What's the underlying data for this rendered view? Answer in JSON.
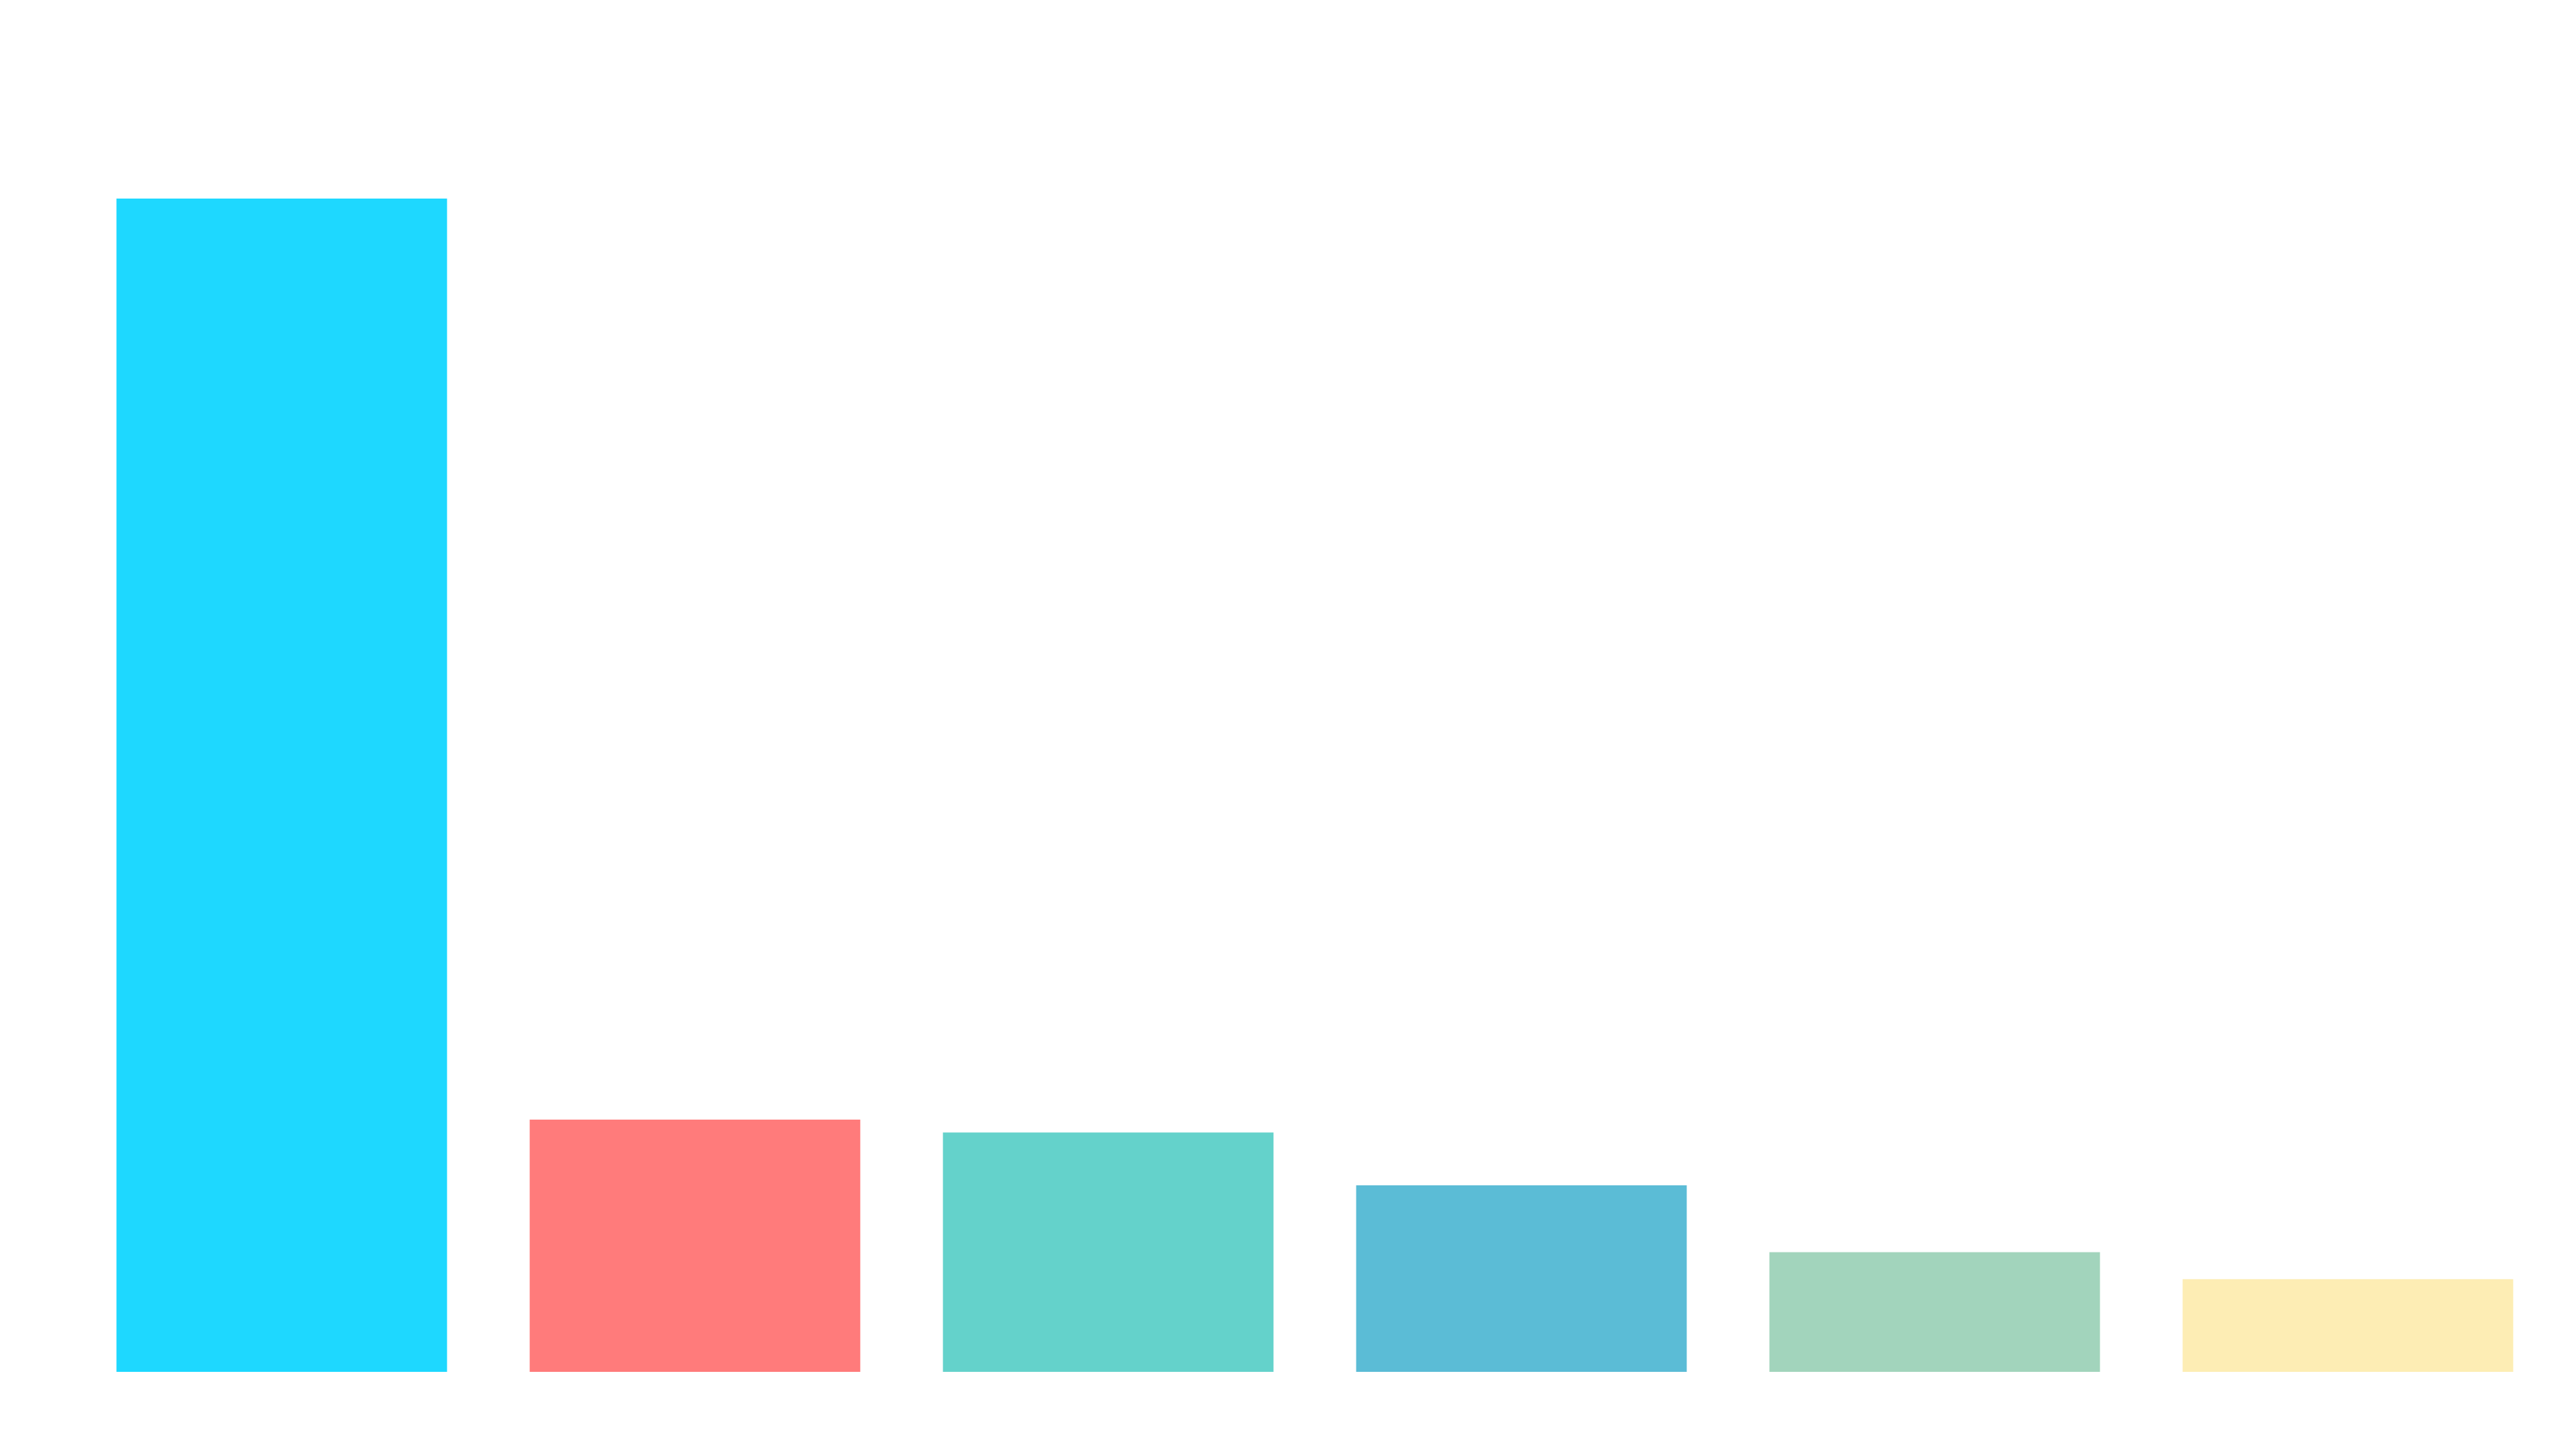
{
  "chart_data": {
    "type": "bar",
    "categories": [
      "",
      "",
      "",
      "",
      "",
      ""
    ],
    "values": [
      100,
      21.5,
      20.4,
      15.9,
      10.2,
      7.9
    ],
    "ylim": [
      0,
      100
    ],
    "grid": false,
    "legend": "none",
    "colors": [
      "#1ed8ff",
      "#ff7b7b",
      "#64d2cb",
      "#5bbcd6",
      "#a2d4bc",
      "#fdedb4"
    ]
  }
}
